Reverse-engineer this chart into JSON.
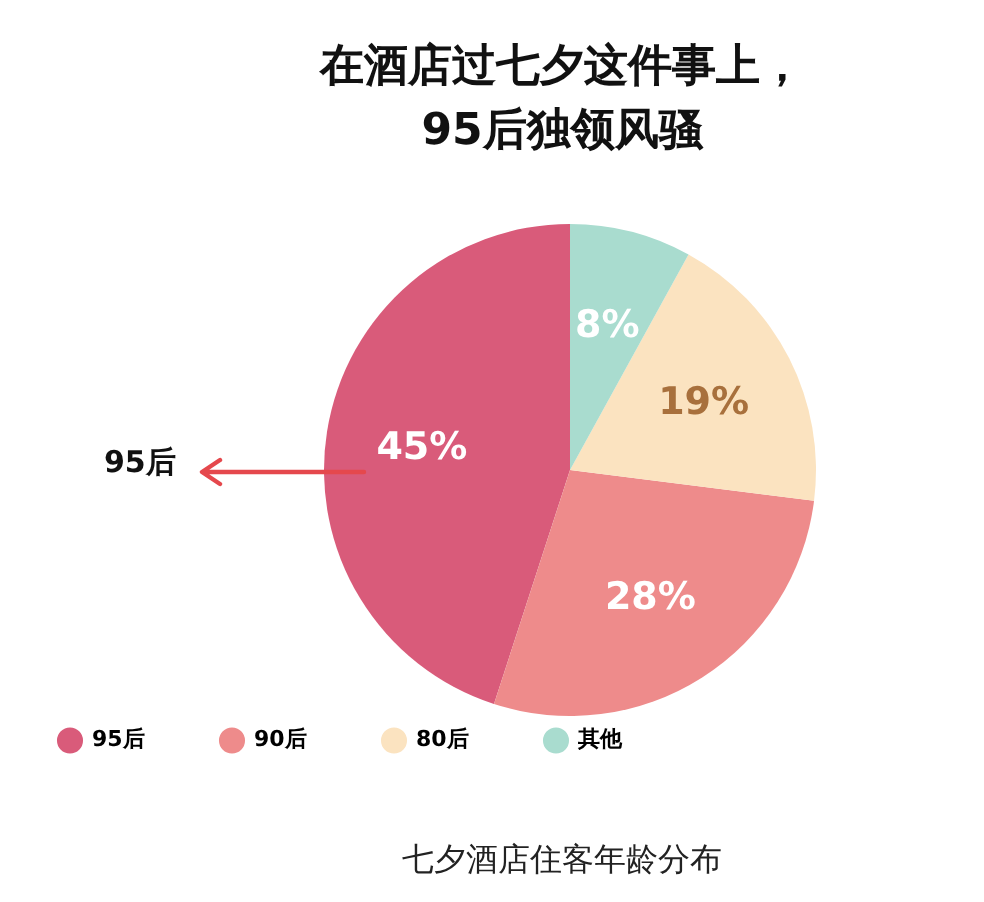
{
  "chart_data": {
    "type": "pie",
    "title": "在酒店过七夕这件事上，",
    "subtitle": "95后独领风骚",
    "categories": [
      "95后",
      "90后",
      "80后",
      "其他"
    ],
    "values": [
      45,
      28,
      19,
      8
    ],
    "colors": [
      "#d95b7a",
      "#ee8b8b",
      "#fbe3c0",
      "#a9dccf"
    ],
    "value_labels": [
      "45%",
      "28%",
      "19%",
      "8%"
    ],
    "legend": "bottom",
    "annotations": [
      "95后",
      "七夕酒店住客年龄分布"
    ]
  }
}
